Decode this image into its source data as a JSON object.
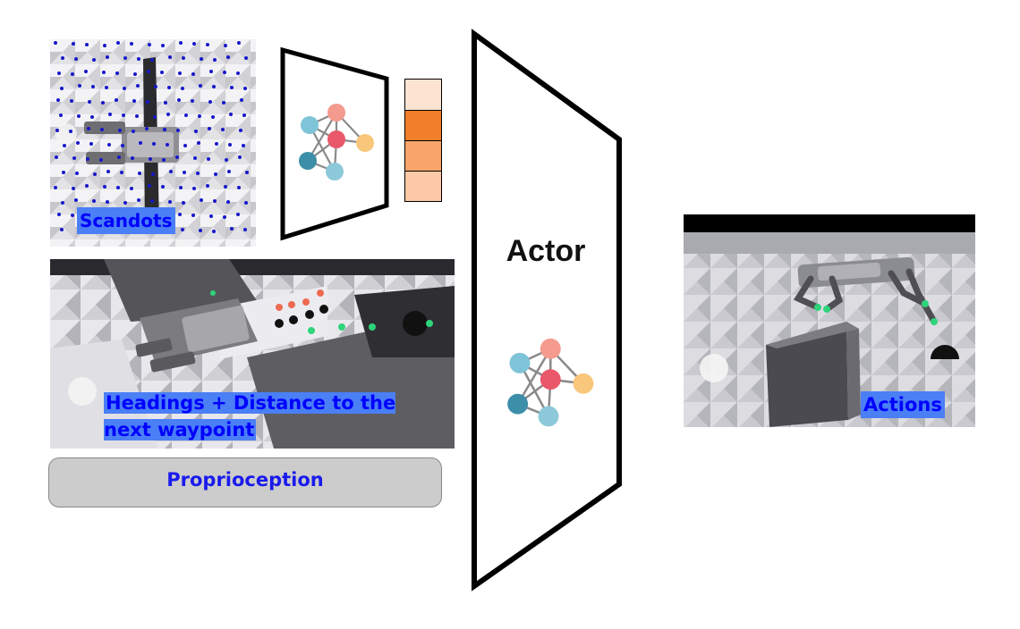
{
  "inputs": {
    "scandots_label": "Scandots",
    "heading_label": "Headings + Distance to the next waypoint",
    "proprioception_label": "Proprioception"
  },
  "actor": {
    "label": "Actor"
  },
  "output": {
    "actions_label": "Actions"
  },
  "encoder": {
    "latent_colors": [
      "#fde4d2",
      "#f07e2a",
      "#f7a56a",
      "#fbc9a6"
    ]
  },
  "network_icon": {
    "node_colors": [
      "#7fc4d8",
      "#f49a8e",
      "#e9586a",
      "#f9c77c",
      "#3d8ea8",
      "#8cc9da"
    ],
    "edge_color": "#8a8a8a"
  },
  "colors": {
    "label_highlight": "#4a7ff5",
    "label_text": "#0000ff"
  }
}
